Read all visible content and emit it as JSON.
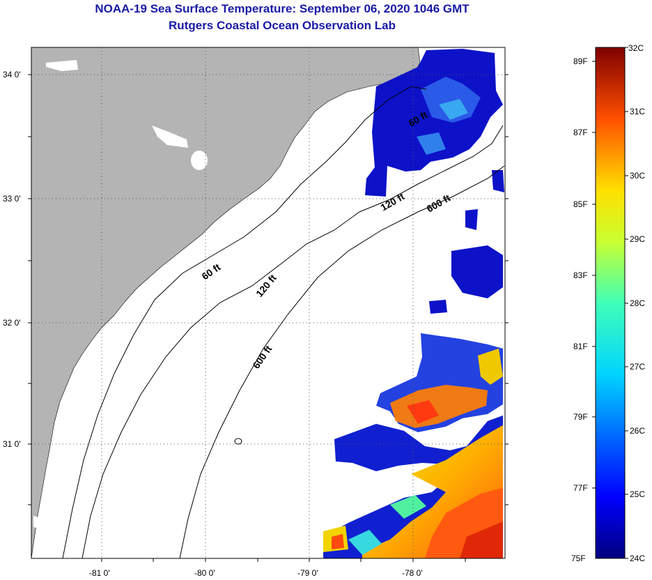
{
  "title": "NOAA-19 Sea Surface Temperature:  September 06, 2020 1046 GMT",
  "subtitle": "Rutgers Coastal Ocean Observation Lab",
  "map": {
    "lat_labels": [
      "34 0'",
      "33 0'",
      "32 0'",
      "31 0'"
    ],
    "lon_labels": [
      "-81 0'",
      "-80 0'",
      "-79 0'",
      "-78 0'"
    ],
    "contour_labels": [
      "60 ft",
      "120 ft",
      "600 ft",
      "60 ft",
      "120 ft",
      "600 ft"
    ],
    "land_color": "#b4b4b4",
    "cloud_mask_color": "#ffffff"
  },
  "colorbar": {
    "fahrenheit_labels": [
      "89F",
      "87F",
      "85F",
      "83F",
      "81F",
      "79F",
      "77F",
      "75F"
    ],
    "celsius_labels": [
      "32C",
      "31C",
      "30C",
      "29C",
      "28C",
      "27C",
      "26C",
      "25C",
      "24C"
    ],
    "min": "24C",
    "max": "32C"
  }
}
